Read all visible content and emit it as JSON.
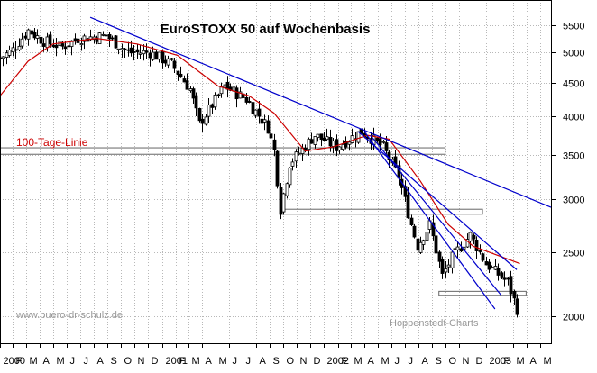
{
  "chart_data": {
    "type": "candlestick",
    "title": "EuroSTOXX 50 auf Wochenbasis",
    "xlabel": "",
    "ylabel": "",
    "scale": "log",
    "ylim": [
      1820,
      6000
    ],
    "yticks": [
      2000,
      2500,
      3000,
      3500,
      4000,
      4500,
      5000,
      5500
    ],
    "ytick_labels": [
      "2000",
      "2500",
      "3000",
      "3500",
      "4000",
      "4500",
      "5000",
      "5500"
    ],
    "xlim": [
      "2000-01-03",
      "2003-05-26"
    ],
    "x_ticks": [
      {
        "date": "2000-01-03",
        "label": "2000"
      },
      {
        "date": "2000-02-01",
        "label": "F"
      },
      {
        "date": "2000-03-01",
        "label": "M"
      },
      {
        "date": "2000-04-01",
        "label": "A"
      },
      {
        "date": "2000-05-01",
        "label": "M"
      },
      {
        "date": "2000-06-01",
        "label": "J"
      },
      {
        "date": "2000-07-01",
        "label": "J"
      },
      {
        "date": "2000-08-01",
        "label": "A"
      },
      {
        "date": "2000-09-01",
        "label": "S"
      },
      {
        "date": "2000-10-01",
        "label": "O"
      },
      {
        "date": "2000-11-01",
        "label": "N"
      },
      {
        "date": "2000-12-01",
        "label": "D"
      },
      {
        "date": "2001-01-01",
        "label": "2001"
      },
      {
        "date": "2001-02-01",
        "label": "F"
      },
      {
        "date": "2001-03-01",
        "label": "M"
      },
      {
        "date": "2001-04-01",
        "label": "A"
      },
      {
        "date": "2001-05-01",
        "label": "M"
      },
      {
        "date": "2001-06-01",
        "label": "J"
      },
      {
        "date": "2001-07-01",
        "label": "J"
      },
      {
        "date": "2001-08-01",
        "label": "A"
      },
      {
        "date": "2001-09-01",
        "label": "S"
      },
      {
        "date": "2001-10-01",
        "label": "O"
      },
      {
        "date": "2001-11-01",
        "label": "N"
      },
      {
        "date": "2001-12-01",
        "label": "D"
      },
      {
        "date": "2002-01-01",
        "label": "2002"
      },
      {
        "date": "2002-02-01",
        "label": "F"
      },
      {
        "date": "2002-03-01",
        "label": "M"
      },
      {
        "date": "2002-04-01",
        "label": "A"
      },
      {
        "date": "2002-05-01",
        "label": "M"
      },
      {
        "date": "2002-06-01",
        "label": "J"
      },
      {
        "date": "2002-07-01",
        "label": "J"
      },
      {
        "date": "2002-08-01",
        "label": "A"
      },
      {
        "date": "2002-09-01",
        "label": "S"
      },
      {
        "date": "2002-10-01",
        "label": "O"
      },
      {
        "date": "2002-11-01",
        "label": "N"
      },
      {
        "date": "2002-12-01",
        "label": "D"
      },
      {
        "date": "2003-01-01",
        "label": "2003"
      },
      {
        "date": "2003-02-01",
        "label": "F"
      },
      {
        "date": "2003-03-01",
        "label": "M"
      },
      {
        "date": "2003-04-01",
        "label": "A"
      },
      {
        "date": "2003-05-01",
        "label": "M"
      }
    ],
    "grid": true,
    "close_anchors": [
      {
        "date": "2000-01-03",
        "value": 4900
      },
      {
        "date": "2000-01-31",
        "value": 5050
      },
      {
        "date": "2000-03-06",
        "value": 5400
      },
      {
        "date": "2000-04-10",
        "value": 5200
      },
      {
        "date": "2000-05-22",
        "value": 5100
      },
      {
        "date": "2000-06-26",
        "value": 5250
      },
      {
        "date": "2000-08-28",
        "value": 5300
      },
      {
        "date": "2000-10-16",
        "value": 5000
      },
      {
        "date": "2000-12-04",
        "value": 5000
      },
      {
        "date": "2001-01-22",
        "value": 4800
      },
      {
        "date": "2001-03-05",
        "value": 4400
      },
      {
        "date": "2001-03-26",
        "value": 3900
      },
      {
        "date": "2001-05-21",
        "value": 4450
      },
      {
        "date": "2001-07-09",
        "value": 4250
      },
      {
        "date": "2001-08-27",
        "value": 3850
      },
      {
        "date": "2001-09-10",
        "value": 3550
      },
      {
        "date": "2001-09-24",
        "value": 2900
      },
      {
        "date": "2001-10-15",
        "value": 3400
      },
      {
        "date": "2001-12-10",
        "value": 3750
      },
      {
        "date": "2002-01-28",
        "value": 3600
      },
      {
        "date": "2002-03-25",
        "value": 3800
      },
      {
        "date": "2002-05-13",
        "value": 3600
      },
      {
        "date": "2002-06-17",
        "value": 3250
      },
      {
        "date": "2002-07-15",
        "value": 2750
      },
      {
        "date": "2002-07-29",
        "value": 2550
      },
      {
        "date": "2002-08-26",
        "value": 2750
      },
      {
        "date": "2002-09-23",
        "value": 2300
      },
      {
        "date": "2002-10-14",
        "value": 2450
      },
      {
        "date": "2002-11-25",
        "value": 2650
      },
      {
        "date": "2002-12-30",
        "value": 2400
      },
      {
        "date": "2003-02-17",
        "value": 2250
      },
      {
        "date": "2003-03-10",
        "value": 2050
      }
    ],
    "moving_average": {
      "name": "100-Tage-Linie",
      "color": "#cc0000",
      "anchors": [
        {
          "date": "2000-01-03",
          "value": 4300
        },
        {
          "date": "2000-03-06",
          "value": 4850
        },
        {
          "date": "2000-05-01",
          "value": 5150
        },
        {
          "date": "2000-08-07",
          "value": 5250
        },
        {
          "date": "2000-11-06",
          "value": 5150
        },
        {
          "date": "2001-02-05",
          "value": 4950
        },
        {
          "date": "2001-05-07",
          "value": 4450
        },
        {
          "date": "2001-07-16",
          "value": 4300
        },
        {
          "date": "2001-09-10",
          "value": 4050
        },
        {
          "date": "2001-11-19",
          "value": 3550
        },
        {
          "date": "2002-01-21",
          "value": 3600
        },
        {
          "date": "2002-04-08",
          "value": 3750
        },
        {
          "date": "2002-05-27",
          "value": 3700
        },
        {
          "date": "2002-08-05",
          "value": 3200
        },
        {
          "date": "2002-10-07",
          "value": 2750
        },
        {
          "date": "2002-12-02",
          "value": 2550
        },
        {
          "date": "2003-03-17",
          "value": 2400
        }
      ]
    },
    "trend_lines": [
      {
        "name": "long-term",
        "color": "#0000cc",
        "start": {
          "date": "2000-07-24",
          "value": 5650
        },
        "end": {
          "date": "2003-05-26",
          "value": 2920
        }
      },
      {
        "name": "medium-term",
        "color": "#0000cc",
        "start": {
          "date": "2002-03-18",
          "value": 3800
        },
        "end": {
          "date": "2003-03-10",
          "value": 2350
        }
      },
      {
        "name": "short-term-1",
        "color": "#0000cc",
        "start": {
          "date": "2002-04-01",
          "value": 3800
        },
        "end": {
          "date": "2003-01-20",
          "value": 2050
        }
      },
      {
        "name": "short-term-2",
        "color": "#0000cc",
        "start": {
          "date": "2002-04-15",
          "value": 3750
        },
        "end": {
          "date": "2003-02-03",
          "value": 2150
        }
      }
    ],
    "support_zones": [
      {
        "start": "2000-01-03",
        "end": "2002-09-30",
        "low": 3510,
        "high": 3590
      },
      {
        "start": "2001-09-24",
        "end": "2002-12-23",
        "low": 2850,
        "high": 2900
      },
      {
        "start": "2002-09-16",
        "end": "2003-03-31",
        "low": 2150,
        "high": 2180
      }
    ]
  },
  "annotations": {
    "ma_label": "100-Tage-Linie",
    "watermark_left": "www.buero-dr-schulz.de",
    "watermark_right": "Hoppenstedt-Charts"
  }
}
